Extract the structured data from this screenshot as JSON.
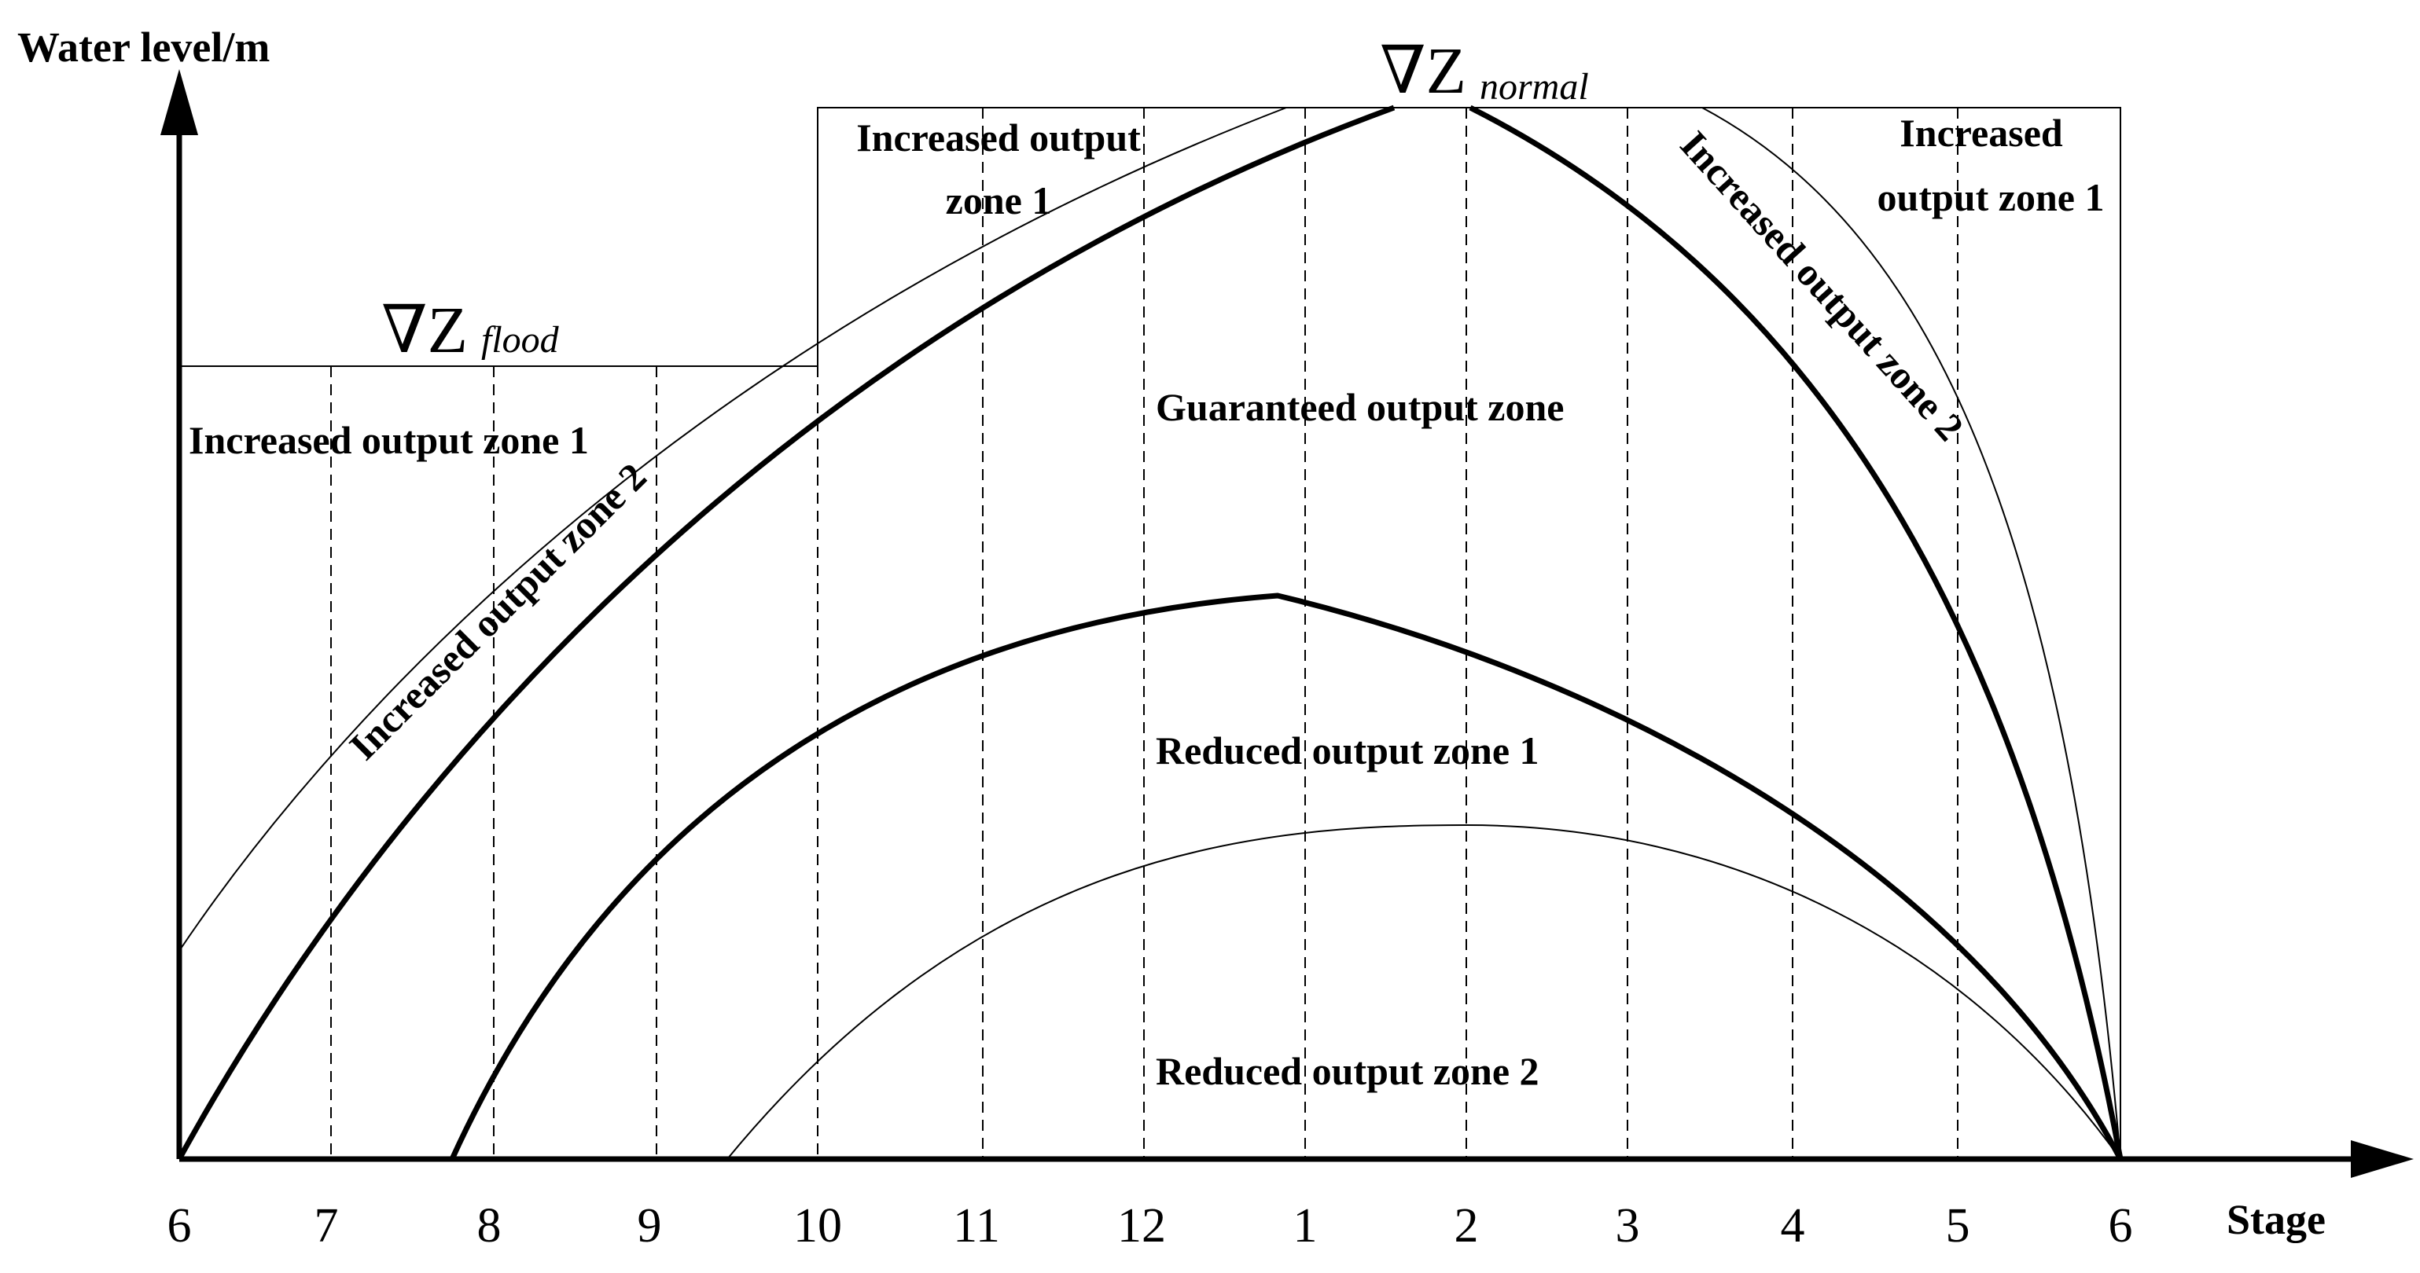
{
  "axes": {
    "y_label": "Water level/m",
    "x_label": "Stage"
  },
  "stages": [
    "6",
    "7",
    "8",
    "9",
    "10",
    "11",
    "12",
    "1",
    "2",
    "3",
    "4",
    "5",
    "6"
  ],
  "levels": {
    "flood_symbol": "∇Z",
    "flood_sub": "flood",
    "normal_symbol": "∇Z",
    "normal_sub": "normal"
  },
  "zones": {
    "inc1_left": "Increased output zone 1",
    "inc1_mid_line1": "Increased output",
    "inc1_mid_line2": "zone 1",
    "inc1_right_line1": "Increased",
    "inc1_right_line2": "output zone 1",
    "inc2_left": "Increased output zone 2",
    "inc2_right": "Increased output zone 2",
    "guaranteed": "Guaranteed output zone",
    "reduced1": "Reduced output zone 1",
    "reduced2": "Reduced output zone 2"
  },
  "colors": {
    "ink": "#000000",
    "background": "#ffffff"
  }
}
